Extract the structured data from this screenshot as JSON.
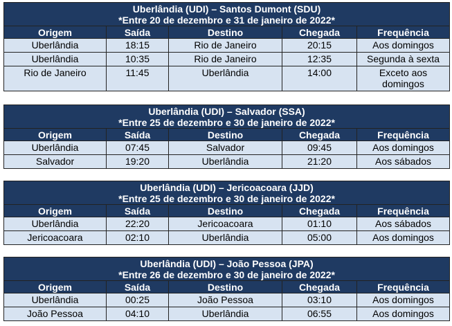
{
  "headers": [
    "Origem",
    "Saída",
    "Destino",
    "Chegada",
    "Frequência"
  ],
  "tables": [
    {
      "title": "Uberlândia (UDI) – Santos Dumont (SDU)",
      "subtitle": "*Entre 20 de dezembro e 31 de janeiro de 2022*",
      "rows": [
        [
          "Uberlândia",
          "18:15",
          "Rio de Janeiro",
          "20:15",
          "Aos domingos"
        ],
        [
          "Uberlândia",
          "10:35",
          "Rio de Janeiro",
          "12:35",
          "Segunda à sexta"
        ],
        [
          "Rio de Janeiro",
          "11:45",
          "Uberlândia",
          "14:00",
          "Exceto aos domingos"
        ]
      ]
    },
    {
      "title": "Uberlândia (UDI) – Salvador (SSA)",
      "subtitle": "*Entre 25 de dezembro e 30 de janeiro de 2022*",
      "rows": [
        [
          "Uberlândia",
          "07:45",
          "Salvador",
          "09:45",
          "Aos domingos"
        ],
        [
          "Salvador",
          "19:20",
          "Uberlândia",
          "21:20",
          "Aos sábados"
        ]
      ]
    },
    {
      "title": "Uberlândia (UDI) – Jericoacoara (JJD)",
      "subtitle": "*Entre 25 de dezembro e 30 de janeiro de 2022*",
      "rows": [
        [
          "Uberlândia",
          "22:20",
          "Jericoacoara",
          "01:10",
          "Aos sábados"
        ],
        [
          "Jericoacoara",
          "02:10",
          "Uberlândia",
          "05:00",
          "Aos domingos"
        ]
      ]
    },
    {
      "title": "Uberlândia (UDI) – João Pessoa (JPA)",
      "subtitle": "*Entre 26 de dezembro e 30 de janeiro de 2022*",
      "rows": [
        [
          "Uberlândia",
          "00:25",
          "João Pessoa",
          "03:10",
          "Aos domingos"
        ],
        [
          "João Pessoa",
          "04:10",
          "Uberlândia",
          "06:55",
          "Aos domingos"
        ]
      ]
    }
  ]
}
